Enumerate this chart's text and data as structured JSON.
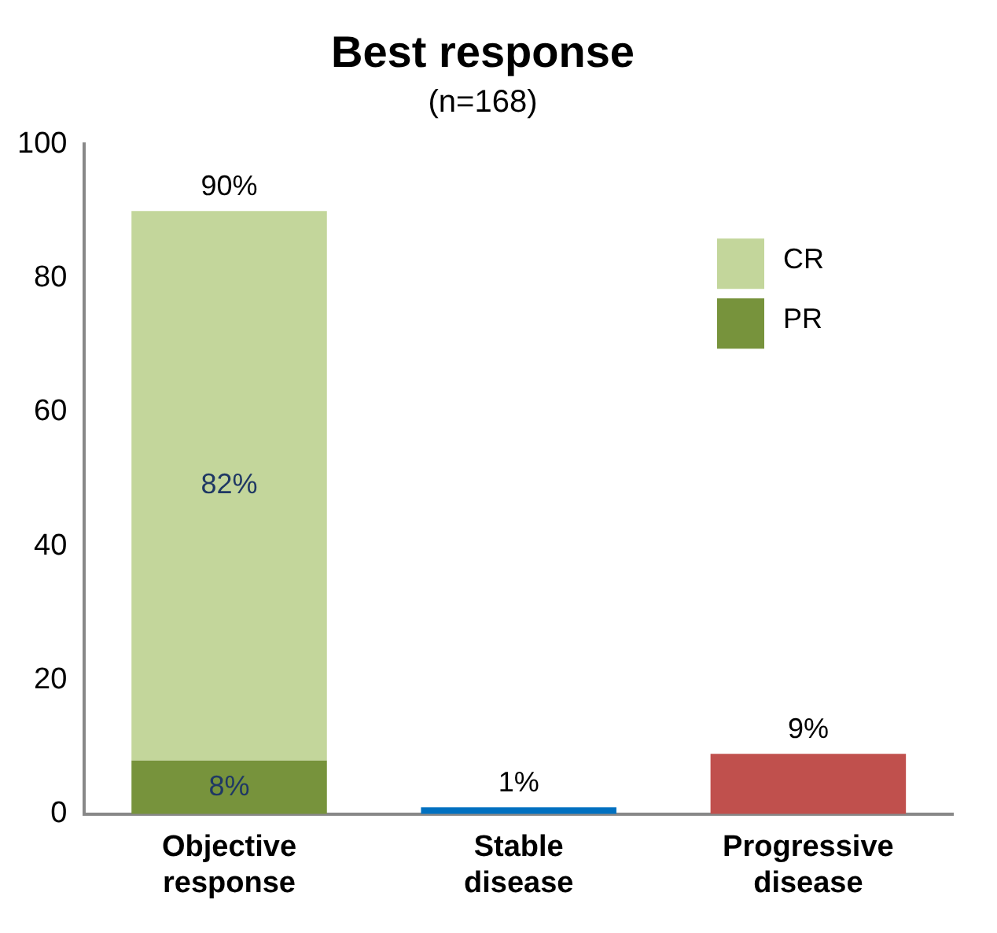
{
  "chart_data": {
    "type": "bar",
    "title": "Best response",
    "subtitle": "(n=168)",
    "stacked": true,
    "categories": [
      "Objective response",
      "Stable disease",
      "Progressive disease"
    ],
    "series": [
      {
        "name": "PR",
        "color": "#77933c",
        "colors": [
          "#77933c",
          "#0070c0",
          "#c0504d"
        ],
        "values": [
          8,
          1,
          9
        ],
        "value_labels": [
          "8%",
          "1%",
          "9%"
        ]
      },
      {
        "name": "CR",
        "color": "#c3d69b",
        "values": [
          82,
          null,
          null
        ],
        "value_labels": [
          "82%",
          null,
          null
        ]
      }
    ],
    "totals": [
      "90%",
      null,
      null
    ],
    "ylim": [
      0,
      100
    ],
    "yticks": [
      0,
      20,
      40,
      60,
      80,
      100
    ],
    "grid": false,
    "legend": "top right"
  }
}
